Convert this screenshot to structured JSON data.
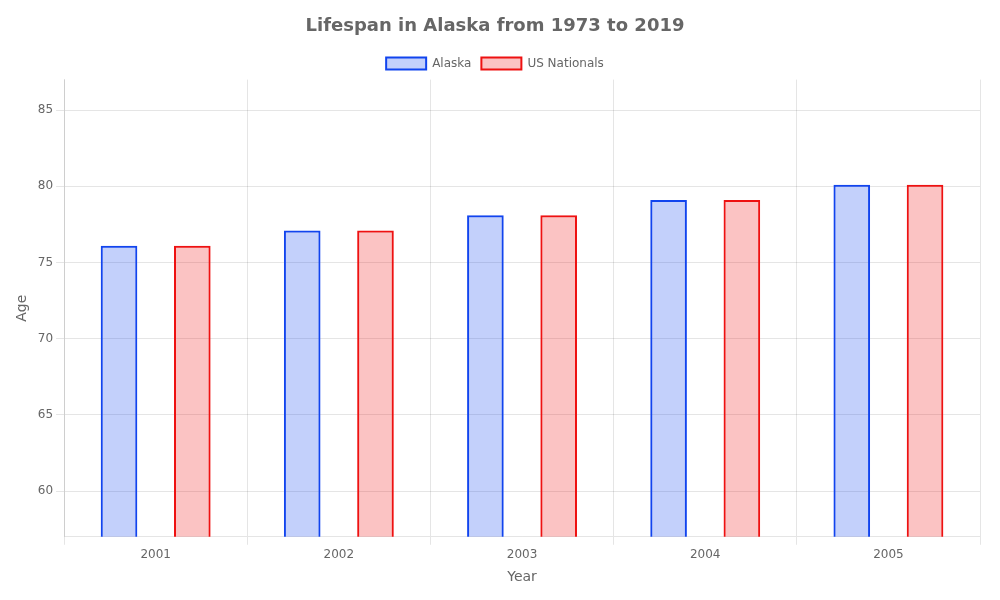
{
  "chart_data": {
    "type": "bar",
    "title": "Lifespan in Alaska from 1973 to 2019",
    "xlabel": "Year",
    "ylabel": "Age",
    "categories": [
      "2001",
      "2002",
      "2003",
      "2004",
      "2005"
    ],
    "series": [
      {
        "name": "Alaska",
        "color": "#1144ee",
        "values": [
          76.1,
          77.1,
          78.1,
          79.1,
          80.1
        ]
      },
      {
        "name": "US Nationals",
        "color": "#ee1111",
        "values": [
          76.1,
          77.1,
          78.1,
          79.1,
          80.1
        ]
      }
    ],
    "ylim": [
      57,
      87
    ],
    "yticks": [
      60,
      65,
      70,
      75,
      80,
      85
    ],
    "grid": true,
    "legend": "top"
  }
}
